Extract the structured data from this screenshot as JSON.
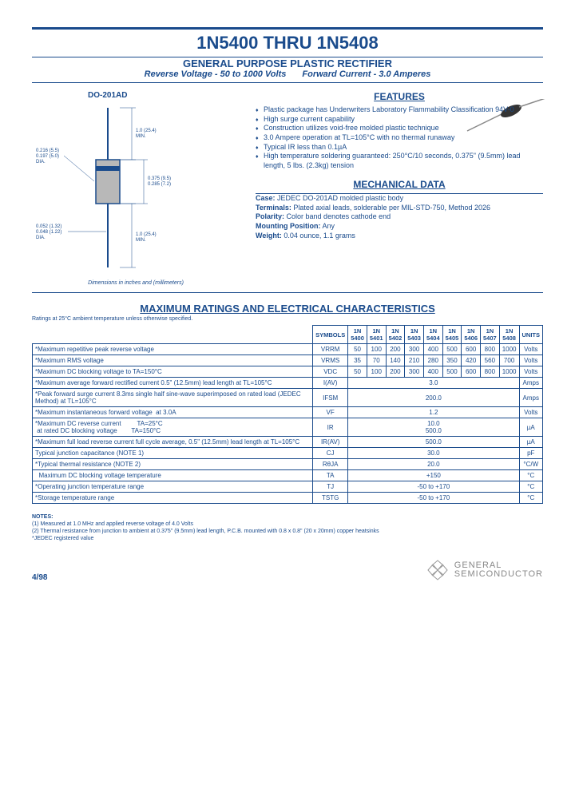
{
  "title": "1N5400 THRU 1N5408",
  "subtitle": "GENERAL PURPOSE PLASTIC RECTIFIER",
  "specline": {
    "rv": "Reverse Voltage - 50 to 1000 Volts",
    "fc": "Forward Current - 3.0 Amperes"
  },
  "pkg": "DO-201AD",
  "dim_note": "Dimensions in inches and (millimeters)",
  "features_head": "FEATURES",
  "features": [
    "Plastic package has Underwriters Laboratory Flammability Classification 94V-0",
    "High surge current capability",
    "Construction utilizes void-free molded plastic technique",
    "3.0 Ampere operation at TL=105°C with no thermal runaway",
    "Typical IR less than 0.1µA",
    "High temperature soldering guaranteed: 250°C/10 seconds, 0.375\" (9.5mm) lead length, 5 lbs. (2.3kg) tension"
  ],
  "mech_head": "MECHANICAL DATA",
  "mech": {
    "case_l": "Case:",
    "case_v": "JEDEC DO-201AD molded plastic body",
    "term_l": "Terminals:",
    "term_v": "Plated axial leads, solderable per MIL-STD-750, Method 2026",
    "pol_l": "Polarity:",
    "pol_v": "Color band denotes cathode end",
    "mnt_l": "Mounting Position:",
    "mnt_v": "Any",
    "wt_l": "Weight:",
    "wt_v": "0.04 ounce, 1.1 grams"
  },
  "ratings_title": "MAXIMUM RATINGS AND ELECTRICAL CHARACTERISTICS",
  "ratings_note": "Ratings at 25°C ambient temperature unless otherwise specified.",
  "cols": [
    "SYMBOLS",
    "1N 5400",
    "1N 5401",
    "1N 5402",
    "1N 5403",
    "1N 5404",
    "1N 5405",
    "1N 5406",
    "1N 5407",
    "1N 5408",
    "UNITS"
  ],
  "rows": [
    {
      "p": "*Maximum repetitive peak reverse voltage",
      "s": "VRRM",
      "v": [
        "50",
        "100",
        "200",
        "300",
        "400",
        "500",
        "600",
        "800",
        "1000"
      ],
      "u": "Volts"
    },
    {
      "p": "*Maximum RMS voltage",
      "s": "VRMS",
      "v": [
        "35",
        "70",
        "140",
        "210",
        "280",
        "350",
        "420",
        "560",
        "700"
      ],
      "u": "Volts"
    },
    {
      "p": "*Maximum DC blocking voltage to TA=150°C",
      "s": "VDC",
      "v": [
        "50",
        "100",
        "200",
        "300",
        "400",
        "500",
        "600",
        "800",
        "1000"
      ],
      "u": "Volts"
    },
    {
      "p": "*Maximum average forward rectified current 0.5\" (12.5mm) lead length at TL=105°C",
      "s": "I(AV)",
      "span": "3.0",
      "u": "Amps"
    },
    {
      "p": "*Peak forward surge current 8.3ms single half sine-wave superimposed on rated load (JEDEC Method) at TL=105°C",
      "s": "IFSM",
      "span": "200.0",
      "u": "Amps"
    },
    {
      "p": "*Maximum instantaneous forward voltage  at 3.0A",
      "s": "VF",
      "span": "1.2",
      "u": "Volts"
    },
    {
      "p": "*Maximum DC reverse current         TA=25°C\n at rated DC blocking voltage        TA=150°C",
      "s": "IR",
      "span": "10.0\n500.0",
      "u": "µA"
    },
    {
      "p": "*Maximum full load reverse current full cycle average, 0.5\" (12.5mm) lead length at TL=105°C",
      "s": "IR(AV)",
      "span": "500.0",
      "u": "µA"
    },
    {
      "p": "Typical junction capacitance (NOTE 1)",
      "s": "CJ",
      "span": "30.0",
      "u": "pF"
    },
    {
      "p": "*Typical thermal resistance (NOTE 2)",
      "s": "RθJA",
      "span": "20.0",
      "u": "°C/W"
    },
    {
      "p": "  Maximum DC blocking voltage temperature",
      "s": "TA",
      "span": "+150",
      "u": "°C"
    },
    {
      "p": "*Operating junction temperature range",
      "s": "TJ",
      "span": "-50 to +170",
      "u": "°C"
    },
    {
      "p": "*Storage temperature range",
      "s": "TSTG",
      "span": "-50 to +170",
      "u": "°C"
    }
  ],
  "notes_head": "NOTES:",
  "notes": [
    "(1) Measured at 1.0 MHz and applied reverse voltage of 4.0 Volts",
    "(2) Thermal resistance from junction to ambient at 0.375\" (9.5mm) lead length, P.C.B. mounted with 0.8 x 0.8\" (20 x 20mm) copper heatsinks",
    "*JEDEC registered value"
  ],
  "date": "4/98",
  "logo": {
    "l1": "GENERAL",
    "l2": "SEMICONDUCTOR"
  },
  "dims": {
    "d1": "0.216 (5.5)",
    "d2": "0.197 (5.0)",
    "d3": "DIA.",
    "d4": "0.052 (1.32)",
    "d5": "0.048 (1.22)",
    "d6": "1.0 (25.4)",
    "d7": "MIN.",
    "d8": "0.375 (9.5)",
    "d9": "0.285 (7.2)"
  }
}
